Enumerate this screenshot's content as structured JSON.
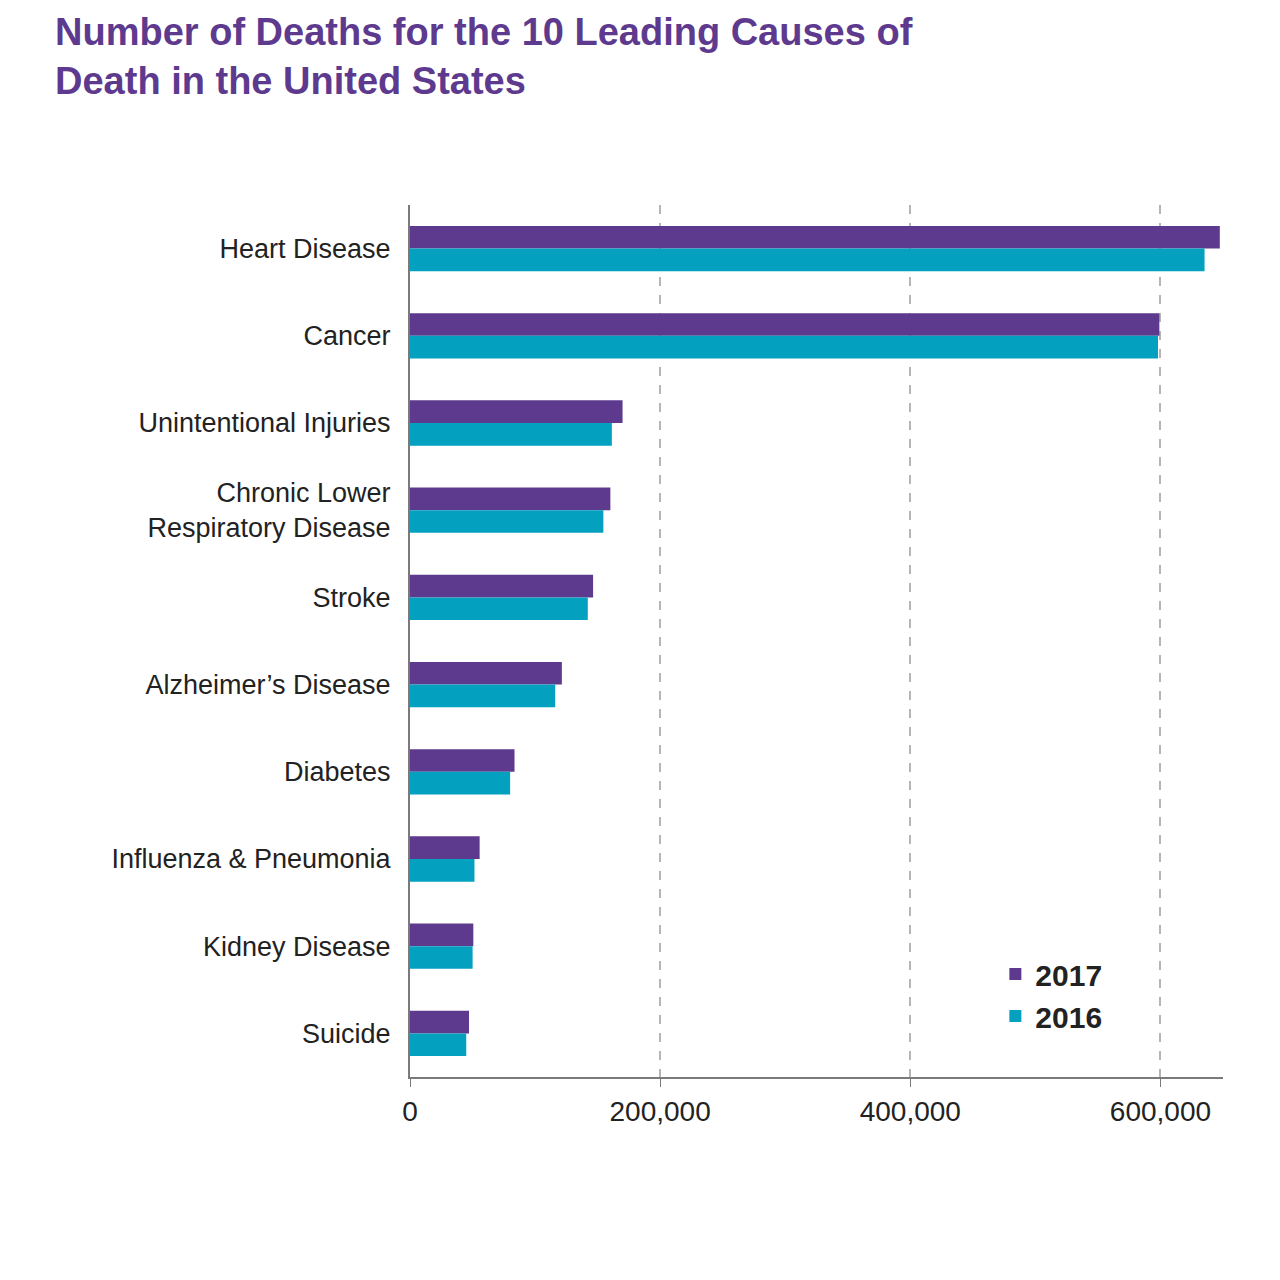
{
  "chart_data": {
    "type": "bar",
    "orientation": "horizontal",
    "title": "Number of Deaths for the 10 Leading Causes of Death in the United States",
    "categories": [
      "Heart Disease",
      "Cancer",
      "Unintentional Injuries",
      "Chronic Lower Respiratory Disease",
      "Stroke",
      "Alzheimer’s Disease",
      "Diabetes",
      "Influenza & Pneumonia",
      "Kidney Disease",
      "Suicide"
    ],
    "series": [
      {
        "name": "2017",
        "color": "#5e3a8f",
        "values": [
          647457,
          599108,
          169936,
          160201,
          146383,
          121404,
          83564,
          55672,
          50633,
          47173
        ]
      },
      {
        "name": "2016",
        "color": "#03a0c0",
        "values": [
          635260,
          598038,
          161374,
          154596,
          142142,
          116103,
          80058,
          51537,
          50046,
          44965
        ]
      }
    ],
    "xlim": [
      0,
      650000
    ],
    "xticks": [
      0,
      {
        "value": 200000,
        "label": "200,000"
      },
      {
        "value": 400000,
        "label": "400,000"
      },
      {
        "value": 600000,
        "label": "600,000"
      }
    ],
    "grid": true,
    "legend": "lower right"
  }
}
